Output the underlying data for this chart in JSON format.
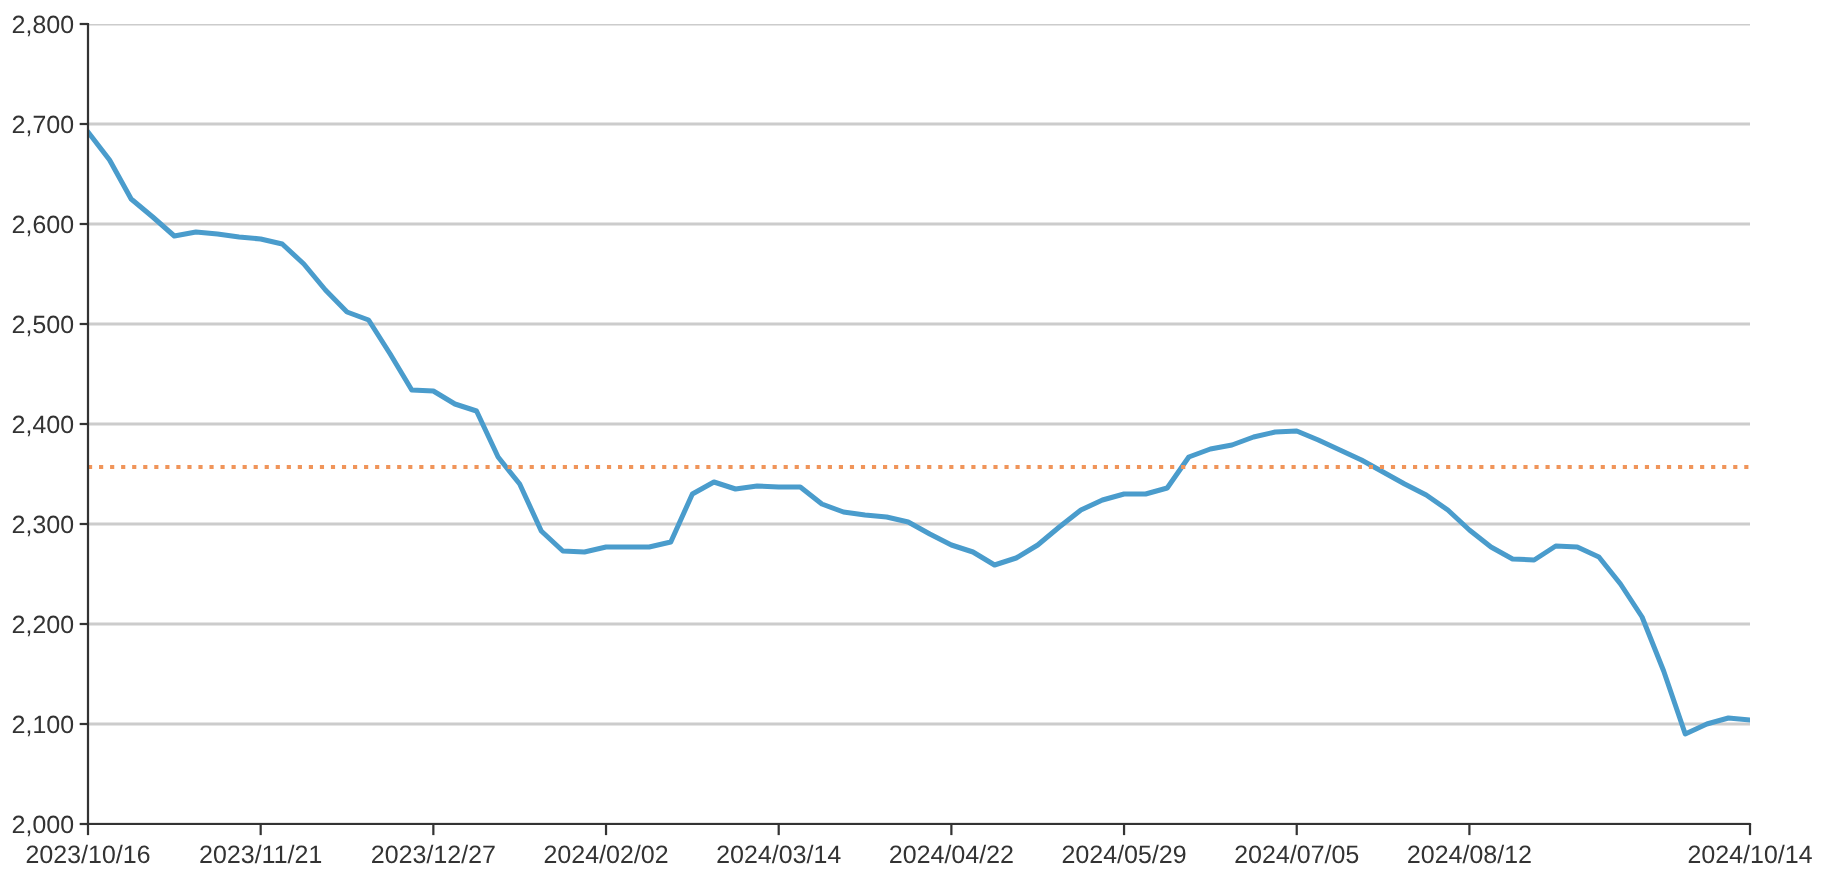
{
  "chart_data": {
    "type": "line",
    "categories": [
      "2023/10/16",
      null,
      null,
      null,
      null,
      null,
      null,
      null,
      "2023/11/21",
      null,
      null,
      null,
      null,
      null,
      null,
      null,
      "2023/12/27",
      null,
      null,
      null,
      null,
      null,
      null,
      null,
      "2024/02/02",
      null,
      null,
      null,
      null,
      null,
      null,
      null,
      "2024/03/14",
      null,
      null,
      null,
      null,
      null,
      null,
      null,
      "2024/04/22",
      null,
      null,
      null,
      null,
      null,
      null,
      null,
      "2024/05/29",
      null,
      null,
      null,
      null,
      null,
      null,
      null,
      "2024/07/05",
      null,
      null,
      null,
      null,
      null,
      null,
      null,
      "2024/08/12",
      null,
      null,
      null,
      null,
      null,
      null,
      null,
      null,
      null,
      null,
      null,
      null,
      "2024/10/14"
    ],
    "series": [
      {
        "color": "#4a9ccc",
        "values": [
          2692,
          2664,
          2625,
          2607,
          2588,
          2592,
          2590,
          2587,
          2585,
          2580,
          2560,
          2534,
          2512,
          2504,
          2470,
          2434,
          2433,
          2420,
          2413,
          2367,
          2340,
          2293,
          2273,
          2272,
          2277,
          2277,
          2277,
          2282,
          2330,
          2342,
          2335,
          2338,
          2337,
          2337,
          2320,
          2312,
          2309,
          2307,
          2302,
          2290,
          2279,
          2272,
          2259,
          2266,
          2279,
          2297,
          2314,
          2324,
          2330,
          2330,
          2336,
          2367,
          2375,
          2379,
          2387,
          2392,
          2393,
          2384,
          2374,
          2364,
          2352,
          2340,
          2329,
          2314,
          2294,
          2277,
          2265,
          2264,
          2278,
          2277,
          2267,
          2240,
          2207,
          2153,
          2090,
          2100,
          2106,
          2104
        ]
      }
    ],
    "ylim": [
      2000,
      2800
    ],
    "yticks": [
      {
        "value": 2000,
        "label": "2,000"
      },
      {
        "value": 2100,
        "label": "2,100"
      },
      {
        "value": 2200,
        "label": "2,200"
      },
      {
        "value": 2300,
        "label": "2,300"
      },
      {
        "value": 2400,
        "label": "2,400"
      },
      {
        "value": 2500,
        "label": "2,500"
      },
      {
        "value": 2600,
        "label": "2,600"
      },
      {
        "value": 2700,
        "label": "2,700"
      },
      {
        "value": 2800,
        "label": "2,800"
      }
    ],
    "ref_lines": [
      {
        "axis": "y",
        "value": 2357,
        "color": "#f0955a",
        "line_style": "dotted"
      }
    ],
    "grid": "y",
    "legend": false,
    "line_style": "solid"
  }
}
